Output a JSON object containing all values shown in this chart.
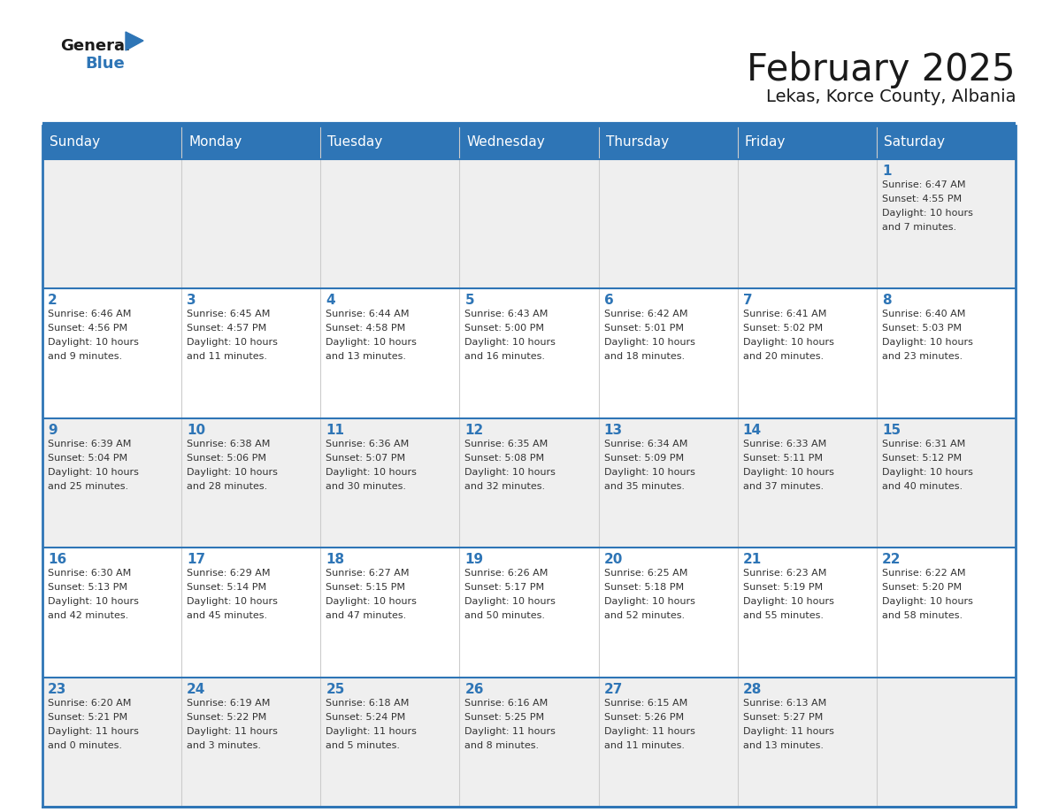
{
  "title": "February 2025",
  "subtitle": "Lekas, Korce County, Albania",
  "days_of_week": [
    "Sunday",
    "Monday",
    "Tuesday",
    "Wednesday",
    "Thursday",
    "Friday",
    "Saturday"
  ],
  "header_bg": "#2E75B6",
  "header_text_color": "#FFFFFF",
  "cell_bg_even": "#EFEFEF",
  "cell_bg_odd": "#FFFFFF",
  "line_color": "#2E75B6",
  "day_number_color": "#2E75B6",
  "cell_text_color": "#333333",
  "title_color": "#1a1a1a",
  "subtitle_color": "#1a1a1a",
  "logo_general_color": "#1a1a1a",
  "logo_blue_color": "#2E75B6",
  "weeks": [
    {
      "days": [
        {
          "date": null,
          "info": ""
        },
        {
          "date": null,
          "info": ""
        },
        {
          "date": null,
          "info": ""
        },
        {
          "date": null,
          "info": ""
        },
        {
          "date": null,
          "info": ""
        },
        {
          "date": null,
          "info": ""
        },
        {
          "date": 1,
          "info": "Sunrise: 6:47 AM\nSunset: 4:55 PM\nDaylight: 10 hours\nand 7 minutes."
        }
      ]
    },
    {
      "days": [
        {
          "date": 2,
          "info": "Sunrise: 6:46 AM\nSunset: 4:56 PM\nDaylight: 10 hours\nand 9 minutes."
        },
        {
          "date": 3,
          "info": "Sunrise: 6:45 AM\nSunset: 4:57 PM\nDaylight: 10 hours\nand 11 minutes."
        },
        {
          "date": 4,
          "info": "Sunrise: 6:44 AM\nSunset: 4:58 PM\nDaylight: 10 hours\nand 13 minutes."
        },
        {
          "date": 5,
          "info": "Sunrise: 6:43 AM\nSunset: 5:00 PM\nDaylight: 10 hours\nand 16 minutes."
        },
        {
          "date": 6,
          "info": "Sunrise: 6:42 AM\nSunset: 5:01 PM\nDaylight: 10 hours\nand 18 minutes."
        },
        {
          "date": 7,
          "info": "Sunrise: 6:41 AM\nSunset: 5:02 PM\nDaylight: 10 hours\nand 20 minutes."
        },
        {
          "date": 8,
          "info": "Sunrise: 6:40 AM\nSunset: 5:03 PM\nDaylight: 10 hours\nand 23 minutes."
        }
      ]
    },
    {
      "days": [
        {
          "date": 9,
          "info": "Sunrise: 6:39 AM\nSunset: 5:04 PM\nDaylight: 10 hours\nand 25 minutes."
        },
        {
          "date": 10,
          "info": "Sunrise: 6:38 AM\nSunset: 5:06 PM\nDaylight: 10 hours\nand 28 minutes."
        },
        {
          "date": 11,
          "info": "Sunrise: 6:36 AM\nSunset: 5:07 PM\nDaylight: 10 hours\nand 30 minutes."
        },
        {
          "date": 12,
          "info": "Sunrise: 6:35 AM\nSunset: 5:08 PM\nDaylight: 10 hours\nand 32 minutes."
        },
        {
          "date": 13,
          "info": "Sunrise: 6:34 AM\nSunset: 5:09 PM\nDaylight: 10 hours\nand 35 minutes."
        },
        {
          "date": 14,
          "info": "Sunrise: 6:33 AM\nSunset: 5:11 PM\nDaylight: 10 hours\nand 37 minutes."
        },
        {
          "date": 15,
          "info": "Sunrise: 6:31 AM\nSunset: 5:12 PM\nDaylight: 10 hours\nand 40 minutes."
        }
      ]
    },
    {
      "days": [
        {
          "date": 16,
          "info": "Sunrise: 6:30 AM\nSunset: 5:13 PM\nDaylight: 10 hours\nand 42 minutes."
        },
        {
          "date": 17,
          "info": "Sunrise: 6:29 AM\nSunset: 5:14 PM\nDaylight: 10 hours\nand 45 minutes."
        },
        {
          "date": 18,
          "info": "Sunrise: 6:27 AM\nSunset: 5:15 PM\nDaylight: 10 hours\nand 47 minutes."
        },
        {
          "date": 19,
          "info": "Sunrise: 6:26 AM\nSunset: 5:17 PM\nDaylight: 10 hours\nand 50 minutes."
        },
        {
          "date": 20,
          "info": "Sunrise: 6:25 AM\nSunset: 5:18 PM\nDaylight: 10 hours\nand 52 minutes."
        },
        {
          "date": 21,
          "info": "Sunrise: 6:23 AM\nSunset: 5:19 PM\nDaylight: 10 hours\nand 55 minutes."
        },
        {
          "date": 22,
          "info": "Sunrise: 6:22 AM\nSunset: 5:20 PM\nDaylight: 10 hours\nand 58 minutes."
        }
      ]
    },
    {
      "days": [
        {
          "date": 23,
          "info": "Sunrise: 6:20 AM\nSunset: 5:21 PM\nDaylight: 11 hours\nand 0 minutes."
        },
        {
          "date": 24,
          "info": "Sunrise: 6:19 AM\nSunset: 5:22 PM\nDaylight: 11 hours\nand 3 minutes."
        },
        {
          "date": 25,
          "info": "Sunrise: 6:18 AM\nSunset: 5:24 PM\nDaylight: 11 hours\nand 5 minutes."
        },
        {
          "date": 26,
          "info": "Sunrise: 6:16 AM\nSunset: 5:25 PM\nDaylight: 11 hours\nand 8 minutes."
        },
        {
          "date": 27,
          "info": "Sunrise: 6:15 AM\nSunset: 5:26 PM\nDaylight: 11 hours\nand 11 minutes."
        },
        {
          "date": 28,
          "info": "Sunrise: 6:13 AM\nSunset: 5:27 PM\nDaylight: 11 hours\nand 13 minutes."
        },
        {
          "date": null,
          "info": ""
        }
      ]
    }
  ]
}
